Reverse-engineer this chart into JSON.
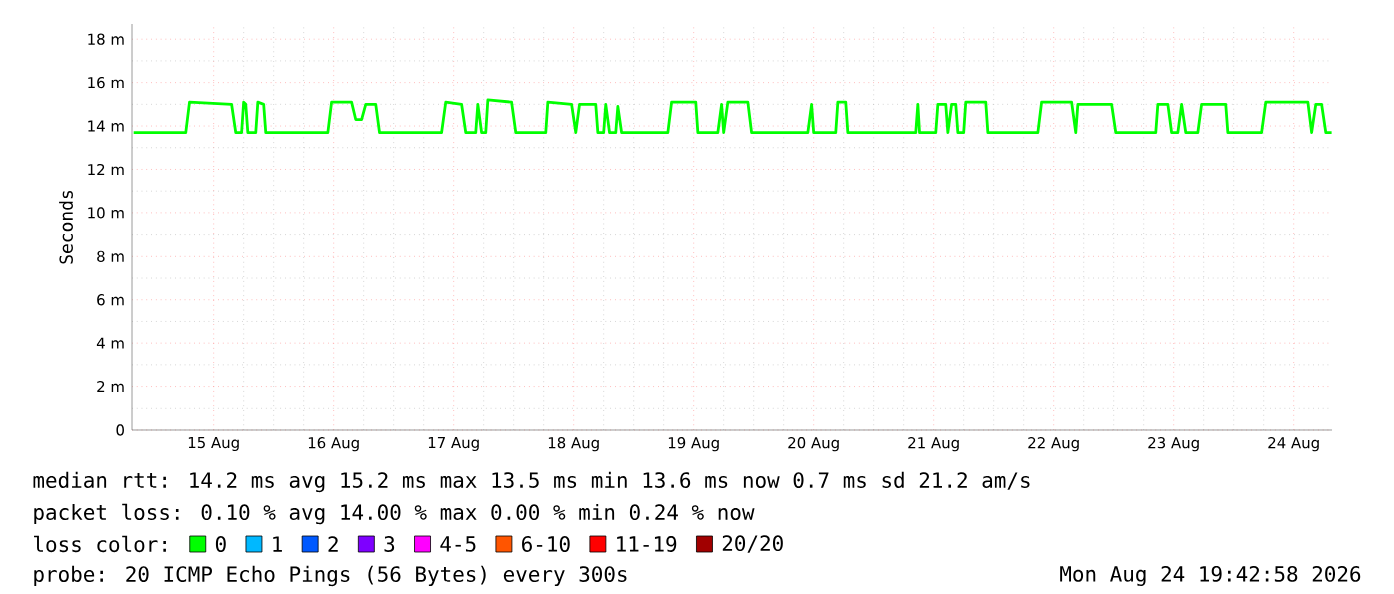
{
  "chart_data": {
    "type": "line",
    "ylabel": "Seconds",
    "legend_title": "loss color:",
    "legend": "bottom",
    "grid": true,
    "marker": "none",
    "line_style": "solid",
    "xlim": [
      "2026-08-14T19:40",
      "2026-08-24T19:40"
    ],
    "xticks": [
      {
        "value": "2026-08-15T12:00",
        "label": "15 Aug"
      },
      {
        "value": "2026-08-16T12:00",
        "label": "16 Aug"
      },
      {
        "value": "2026-08-17T12:00",
        "label": "17 Aug"
      },
      {
        "value": "2026-08-18T12:00",
        "label": "18 Aug"
      },
      {
        "value": "2026-08-19T12:00",
        "label": "19 Aug"
      },
      {
        "value": "2026-08-20T12:00",
        "label": "20 Aug"
      },
      {
        "value": "2026-08-21T12:00",
        "label": "21 Aug"
      },
      {
        "value": "2026-08-22T12:00",
        "label": "22 Aug"
      },
      {
        "value": "2026-08-23T12:00",
        "label": "23 Aug"
      },
      {
        "value": "2026-08-24T12:00",
        "label": "24 Aug"
      }
    ],
    "ylim": [
      0,
      18.7
    ],
    "yticks": [
      0,
      {
        "value": 2,
        "label": "2 m"
      },
      {
        "value": 4,
        "label": "4 m"
      },
      {
        "value": 6,
        "label": "6 m"
      },
      {
        "value": 8,
        "label": "8 m"
      },
      {
        "value": 10,
        "label": "10 m"
      },
      {
        "value": 12,
        "label": "12 m"
      },
      {
        "value": 14,
        "label": "14 m"
      },
      {
        "value": 16,
        "label": "16 m"
      },
      {
        "value": 18,
        "label": "18 m"
      }
    ],
    "series": [
      {
        "name": "0",
        "color": "#00ff00",
        "x": [
          "2026-08-14T20:00",
          "2026-08-15T06:25",
          "2026-08-15T07:10",
          "2026-08-15T15:35",
          "2026-08-15T16:25",
          "2026-08-15T17:35",
          "2026-08-15T18:00",
          "2026-08-15T18:25",
          "2026-08-15T18:50",
          "2026-08-15T20:25",
          "2026-08-15T20:50",
          "2026-08-15T22:00",
          "2026-08-15T22:25",
          "2026-08-16T10:50",
          "2026-08-16T11:35",
          "2026-08-16T15:35",
          "2026-08-16T16:25",
          "2026-08-16T17:35",
          "2026-08-16T18:25",
          "2026-08-16T20:25",
          "2026-08-16T21:10",
          "2026-08-17T09:35",
          "2026-08-17T10:25",
          "2026-08-17T13:35",
          "2026-08-17T14:25",
          "2026-08-17T16:25",
          "2026-08-17T16:50",
          "2026-08-17T17:35",
          "2026-08-17T18:25",
          "2026-08-17T18:50",
          "2026-08-17T23:35",
          "2026-08-18T00:25",
          "2026-08-18T06:25",
          "2026-08-18T06:50",
          "2026-08-18T11:35",
          "2026-08-18T12:25",
          "2026-08-18T13:10",
          "2026-08-18T16:25",
          "2026-08-18T16:50",
          "2026-08-18T18:00",
          "2026-08-18T18:25",
          "2026-08-18T19:10",
          "2026-08-18T20:25",
          "2026-08-18T20:50",
          "2026-08-18T21:35",
          "2026-08-19T06:50",
          "2026-08-19T07:35",
          "2026-08-19T12:25",
          "2026-08-19T12:50",
          "2026-08-19T16:50",
          "2026-08-19T17:35",
          "2026-08-19T18:00",
          "2026-08-19T18:50",
          "2026-08-19T22:50",
          "2026-08-19T23:35",
          "2026-08-20T10:50",
          "2026-08-20T11:35",
          "2026-08-20T12:00",
          "2026-08-20T16:25",
          "2026-08-20T16:50",
          "2026-08-20T18:25",
          "2026-08-20T18:50",
          "2026-08-21T08:25",
          "2026-08-21T08:50",
          "2026-08-21T09:10",
          "2026-08-21T12:25",
          "2026-08-21T12:50",
          "2026-08-21T14:25",
          "2026-08-21T14:50",
          "2026-08-21T15:35",
          "2026-08-21T16:25",
          "2026-08-21T16:50",
          "2026-08-21T18:00",
          "2026-08-21T18:25",
          "2026-08-21T22:25",
          "2026-08-21T22:50",
          "2026-08-22T08:50",
          "2026-08-22T09:35",
          "2026-08-22T15:35",
          "2026-08-22T16:25",
          "2026-08-22T16:50",
          "2026-08-22T23:35",
          "2026-08-23T00:25",
          "2026-08-23T08:25",
          "2026-08-23T08:50",
          "2026-08-23T10:50",
          "2026-08-23T11:35",
          "2026-08-23T12:50",
          "2026-08-23T13:35",
          "2026-08-23T14:25",
          "2026-08-23T16:50",
          "2026-08-23T17:35",
          "2026-08-23T22:25",
          "2026-08-23T22:50",
          "2026-08-24T05:35",
          "2026-08-24T06:25",
          "2026-08-24T14:50",
          "2026-08-24T15:35",
          "2026-08-24T16:25",
          "2026-08-24T17:35",
          "2026-08-24T18:25",
          "2026-08-24T19:35"
        ],
        "values": [
          13.7,
          13.7,
          15.1,
          15,
          13.7,
          13.7,
          15.1,
          15,
          13.7,
          13.7,
          15.1,
          15,
          13.7,
          13.7,
          15.1,
          15.1,
          14.3,
          14.3,
          15,
          15,
          13.7,
          13.7,
          15.1,
          15,
          13.7,
          13.7,
          15,
          13.7,
          13.7,
          15.2,
          15.1,
          13.7,
          13.7,
          15.1,
          15,
          13.7,
          15,
          15,
          13.7,
          13.7,
          15,
          13.7,
          13.7,
          14.9,
          13.7,
          13.7,
          15.1,
          15.1,
          13.7,
          13.7,
          15,
          13.7,
          15.1,
          15.1,
          13.7,
          13.7,
          15,
          13.7,
          13.7,
          15.1,
          15.1,
          13.7,
          13.7,
          15,
          13.7,
          13.7,
          15,
          15,
          13.7,
          15,
          15,
          13.7,
          13.7,
          15.1,
          15.1,
          13.7,
          13.7,
          15.1,
          15.1,
          13.7,
          15,
          15,
          13.7,
          13.7,
          15,
          15,
          13.7,
          13.7,
          15,
          13.7,
          13.7,
          15,
          15,
          13.7,
          13.7,
          15.1,
          15.1,
          13.7,
          15,
          15,
          13.7,
          13.7
        ]
      },
      {
        "name": "1",
        "color": "#00b8ff"
      },
      {
        "name": "2",
        "color": "#0059ff"
      },
      {
        "name": "3",
        "color": "#7e00ff"
      },
      {
        "name": "4-5",
        "color": "#ff00ff"
      },
      {
        "name": "6-10",
        "color": "#ff5500"
      },
      {
        "name": "11-19",
        "color": "#ff0000"
      },
      {
        "name": "20/20",
        "color": "#a10000"
      }
    ],
    "annotations": [
      "median rtt:  14.2 ms avg  15.2 ms max  13.5 ms min  13.6 ms now  0.7 ms sd  21.2   am/s",
      "packet loss: 0.10 % avg  14.00 % max  0.00 % min  0.24 % now",
      "probe:       20 ICMP Echo Pings (56 Bytes) every 300s",
      "Mon Aug 24 19:42:58 2026"
    ]
  }
}
